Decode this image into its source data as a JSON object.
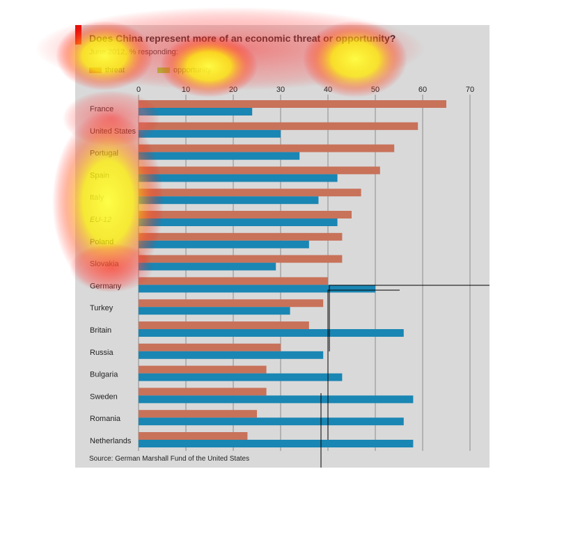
{
  "title": "Does China represent more of an economic threat or opportunity?",
  "subtitle": "June 2012, % responding:",
  "legend": [
    {
      "label": "threat",
      "color": "#c8725a"
    },
    {
      "label": "opportunity",
      "color": "#9acd32"
    }
  ],
  "source": "Source: German Marshall Fund of the United States",
  "colors": {
    "threat": "#c8725a",
    "opportunity": "#1a86b3",
    "grid": "#8c8c8c",
    "panel": "#d9d9d9"
  },
  "chart_data": {
    "type": "bar",
    "orientation": "horizontal",
    "title": "Does China represent more of an economic threat or opportunity?",
    "subtitle": "June 2012, % responding:",
    "x_ticks": [
      0,
      10,
      20,
      30,
      40,
      50,
      60,
      70
    ],
    "xlim": [
      0,
      70
    ],
    "grid": true,
    "legend_position": "top-left",
    "categories": [
      "France",
      "United States",
      "Portugal",
      "Spain",
      "Italy",
      "EU-12",
      "Poland",
      "Slovakia",
      "Germany",
      "Turkey",
      "Britain",
      "Russia",
      "Bulgaria",
      "Sweden",
      "Romania",
      "Netherlands"
    ],
    "series": [
      {
        "name": "threat",
        "values": [
          65,
          59,
          54,
          51,
          47,
          45,
          43,
          43,
          40,
          39,
          36,
          30,
          27,
          27,
          25,
          23
        ]
      },
      {
        "name": "opportunity",
        "values": [
          24,
          30,
          34,
          42,
          38,
          42,
          36,
          29,
          50,
          32,
          56,
          39,
          43,
          58,
          56,
          58
        ]
      }
    ]
  }
}
